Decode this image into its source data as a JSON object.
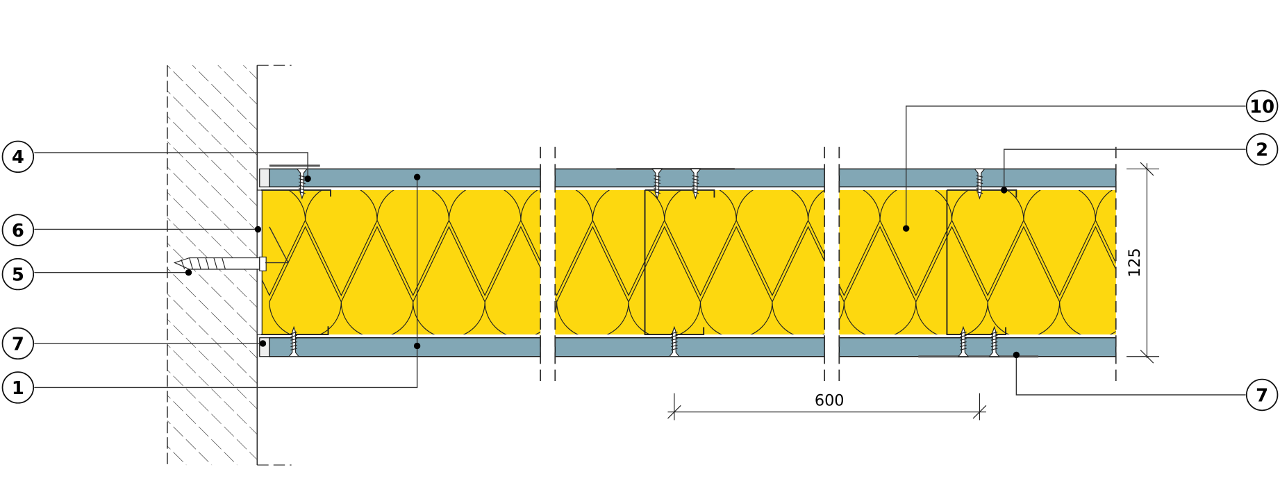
{
  "colors": {
    "insulation": "#FDD80F",
    "board": "#82A7B5",
    "line": "#1a1a1a",
    "leader": "#555555",
    "background": "#ffffff"
  },
  "callouts": [
    {
      "id": "4",
      "text": "4"
    },
    {
      "id": "6",
      "text": "6"
    },
    {
      "id": "5",
      "text": "5"
    },
    {
      "id": "7a",
      "text": "7"
    },
    {
      "id": "1",
      "text": "1"
    },
    {
      "id": "10",
      "text": "10"
    },
    {
      "id": "2",
      "text": "2"
    },
    {
      "id": "7b",
      "text": "7"
    }
  ],
  "dimensions": {
    "thickness": "125",
    "spacing": "600"
  }
}
